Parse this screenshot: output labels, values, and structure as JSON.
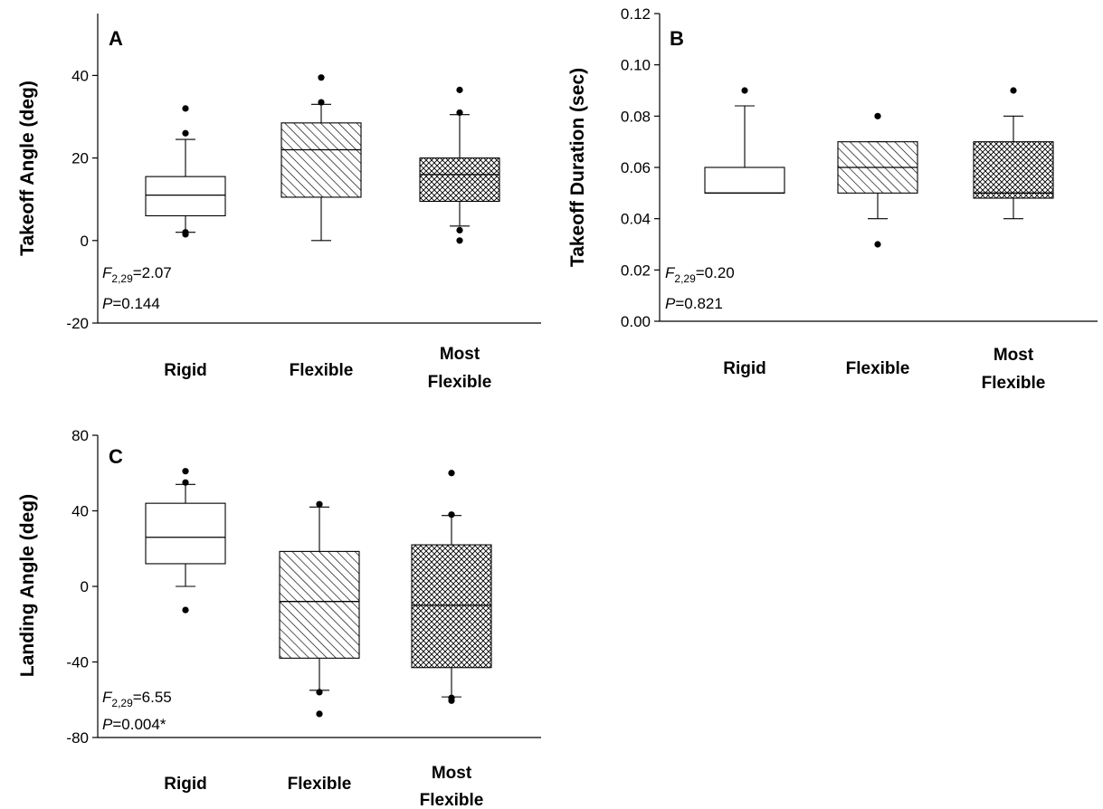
{
  "chart_data": [
    {
      "panel": "A",
      "type": "box",
      "ylabel": "Takeoff Angle (deg)",
      "ylim": [
        -20,
        55
      ],
      "yticks": [
        -20,
        0,
        20,
        40
      ],
      "categories": [
        "Rigid",
        "Flexible",
        "Most Flexible"
      ],
      "fills": [
        "none",
        "hatch",
        "crosshatch"
      ],
      "boxes": [
        {
          "q1": 6,
          "median": 11,
          "q3": 15.5,
          "whisker_low": 2,
          "whisker_high": 24.5,
          "outliers": [
            32,
            26,
            2,
            1.5
          ]
        },
        {
          "q1": 10.5,
          "median": 22,
          "q3": 28.5,
          "whisker_low": 0,
          "whisker_high": 33,
          "outliers": [
            39.5,
            33.5
          ]
        },
        {
          "q1": 9.5,
          "median": 16,
          "q3": 20,
          "whisker_low": 3.5,
          "whisker_high": 30.5,
          "outliers": [
            36.5,
            31,
            2.5,
            0
          ]
        }
      ],
      "stat": {
        "f_label": "F",
        "f_sub": "2,29",
        "f_value": "=2.07",
        "p_label": "P",
        "p_value": "=0.144"
      }
    },
    {
      "panel": "B",
      "type": "box",
      "ylabel": "Takeoff Duration (sec)",
      "ylim": [
        0,
        0.12
      ],
      "yticks": [
        "0.00",
        "0.02",
        "0.04",
        "0.06",
        "0.08",
        "0.10",
        "0.12"
      ],
      "categories": [
        "Rigid",
        "Flexible",
        "Most Flexible"
      ],
      "fills": [
        "none",
        "hatch",
        "crosshatch"
      ],
      "boxes": [
        {
          "q1": 0.05,
          "median": 0.05,
          "q3": 0.06,
          "whisker_low": 0.05,
          "whisker_high": 0.084,
          "outliers": [
            0.09
          ]
        },
        {
          "q1": 0.05,
          "median": 0.06,
          "q3": 0.07,
          "whisker_low": 0.04,
          "whisker_high": 0.07,
          "outliers": [
            0.08,
            0.03
          ]
        },
        {
          "q1": 0.048,
          "median": 0.05,
          "q3": 0.07,
          "whisker_low": 0.04,
          "whisker_high": 0.08,
          "outliers": [
            0.09
          ]
        }
      ],
      "stat": {
        "f_label": "F",
        "f_sub": "2,29",
        "f_value": "=0.20",
        "p_label": "P",
        "p_value": "=0.821"
      }
    },
    {
      "panel": "C",
      "type": "box",
      "ylabel": "Landing Angle (deg)",
      "ylim": [
        -80,
        80
      ],
      "yticks": [
        -80,
        -40,
        0,
        40,
        80
      ],
      "categories": [
        "Rigid",
        "Flexible",
        "Most Flexible"
      ],
      "fills": [
        "none",
        "hatch",
        "crosshatch"
      ],
      "boxes": [
        {
          "q1": 12,
          "median": 26,
          "q3": 44,
          "whisker_low": 0,
          "whisker_high": 54,
          "outliers": [
            61,
            55,
            -12.5
          ]
        },
        {
          "q1": -38,
          "median": -8,
          "q3": 18.5,
          "whisker_low": -55,
          "whisker_high": 42,
          "outliers": [
            43.5,
            -56,
            -67.5
          ]
        },
        {
          "q1": -43,
          "median": -10,
          "q3": 22,
          "whisker_low": -58.5,
          "whisker_high": 37.5,
          "outliers": [
            60,
            38,
            -59,
            -60.5
          ]
        }
      ],
      "stat": {
        "f_label": "F",
        "f_sub": "2,29",
        "f_value": "=6.55",
        "p_label": "P",
        "p_value": "=0.004*"
      }
    }
  ]
}
